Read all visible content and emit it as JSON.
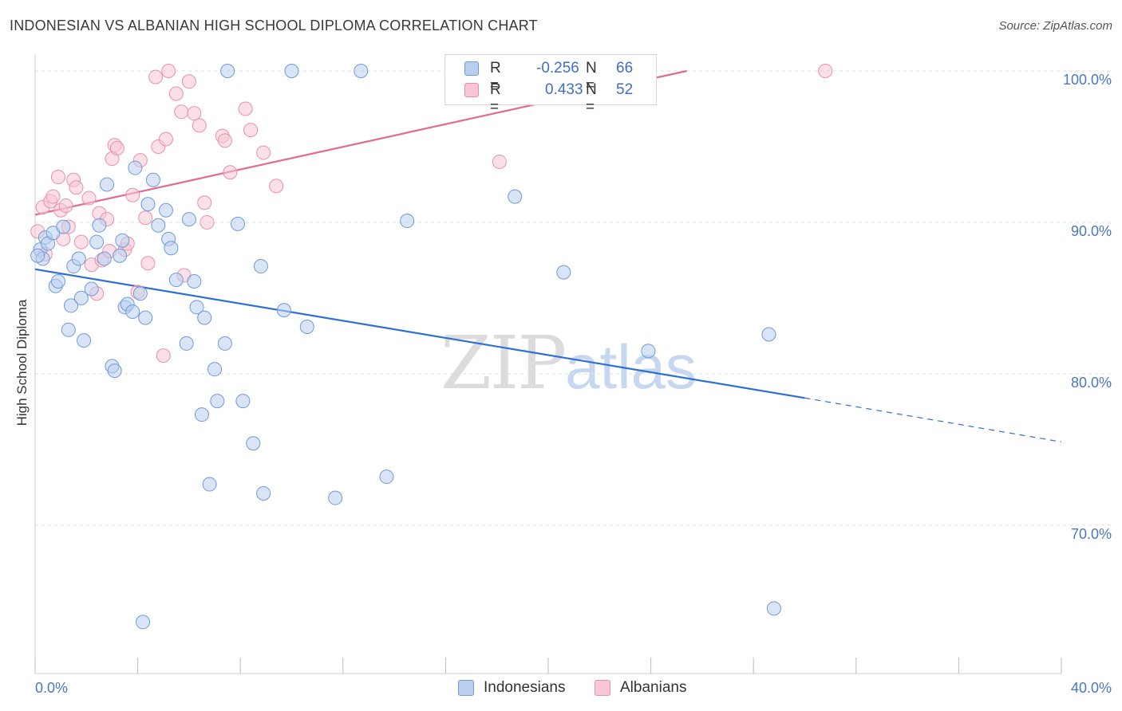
{
  "header": {
    "title": "INDONESIAN VS ALBANIAN HIGH SCHOOL DIPLOMA CORRELATION CHART",
    "source": "Source: ZipAtlas.com"
  },
  "watermark": {
    "zip": "ZIP",
    "atlas": "atlas"
  },
  "legend": {
    "r_label": "R =",
    "n_label": "N =",
    "indonesians": {
      "r": "-0.256",
      "n": "66"
    },
    "albanians": {
      "r": "0.433",
      "n": "52"
    }
  },
  "bottom_legend": {
    "indonesians": "Indonesians",
    "albanians": "Albanians"
  },
  "colors": {
    "indonesians_fill": "#b9cff0",
    "indonesians_stroke": "#6f9ad8",
    "indonesians_line": "#2e6fd0",
    "albanians_fill": "#f8c6d4",
    "albanians_stroke": "#e890ab",
    "albanians_line": "#e06b92",
    "grid": "#dddddd",
    "tick_text": "#4a78c0"
  },
  "chart_data": {
    "type": "scatter",
    "title": "INDONESIAN VS ALBANIAN HIGH SCHOOL DIPLOMA CORRELATION CHART",
    "xlabel": "",
    "ylabel": "High School Diploma",
    "xlim": [
      0,
      40
    ],
    "ylim": [
      60.2,
      101.0
    ],
    "x_tick_labels": [
      "0.0%",
      "40.0%"
    ],
    "y_ticks": [
      {
        "value": 70,
        "label": "70.0%"
      },
      {
        "value": 80,
        "label": "80.0%"
      },
      {
        "value": 90,
        "label": "90.0%"
      },
      {
        "value": 100,
        "label": "100.0%"
      }
    ],
    "series": [
      {
        "name": "Indonesians",
        "r": -0.256,
        "n": 66,
        "points": [
          [
            0.2,
            88.2
          ],
          [
            0.3,
            87.6
          ],
          [
            0.4,
            89.0
          ],
          [
            0.5,
            88.6
          ],
          [
            0.7,
            89.3
          ],
          [
            0.8,
            85.8
          ],
          [
            0.9,
            86.1
          ],
          [
            1.1,
            89.7
          ],
          [
            1.3,
            82.9
          ],
          [
            1.4,
            84.5
          ],
          [
            1.5,
            87.1
          ],
          [
            1.7,
            87.6
          ],
          [
            1.8,
            85.0
          ],
          [
            1.9,
            82.2
          ],
          [
            2.2,
            85.6
          ],
          [
            2.4,
            88.7
          ],
          [
            2.5,
            89.8
          ],
          [
            2.7,
            87.6
          ],
          [
            2.8,
            92.5
          ],
          [
            3.0,
            80.5
          ],
          [
            3.1,
            80.2
          ],
          [
            3.3,
            87.8
          ],
          [
            3.4,
            88.8
          ],
          [
            3.5,
            84.4
          ],
          [
            3.6,
            84.6
          ],
          [
            3.8,
            84.1
          ],
          [
            3.9,
            93.6
          ],
          [
            4.1,
            85.3
          ],
          [
            4.3,
            83.7
          ],
          [
            4.4,
            91.2
          ],
          [
            4.6,
            92.8
          ],
          [
            4.8,
            89.8
          ],
          [
            5.1,
            90.8
          ],
          [
            5.2,
            88.9
          ],
          [
            5.3,
            88.3
          ],
          [
            5.5,
            86.2
          ],
          [
            5.9,
            82.0
          ],
          [
            6.0,
            90.2
          ],
          [
            6.2,
            86.1
          ],
          [
            6.3,
            84.4
          ],
          [
            6.5,
            77.3
          ],
          [
            6.6,
            83.7
          ],
          [
            6.8,
            72.7
          ],
          [
            7.0,
            80.3
          ],
          [
            7.1,
            78.2
          ],
          [
            7.4,
            82.0
          ],
          [
            7.5,
            100.0
          ],
          [
            7.9,
            89.9
          ],
          [
            8.1,
            78.2
          ],
          [
            8.5,
            75.4
          ],
          [
            8.8,
            87.1
          ],
          [
            8.9,
            72.1
          ],
          [
            9.7,
            84.2
          ],
          [
            10.0,
            100.0
          ],
          [
            10.6,
            83.1
          ],
          [
            11.7,
            71.8
          ],
          [
            12.7,
            100.0
          ],
          [
            13.7,
            73.2
          ],
          [
            14.5,
            90.1
          ],
          [
            4.2,
            63.6
          ],
          [
            18.7,
            91.7
          ],
          [
            20.6,
            86.7
          ],
          [
            23.9,
            81.5
          ],
          [
            28.6,
            82.6
          ],
          [
            28.8,
            64.5
          ],
          [
            0.1,
            87.8
          ]
        ]
      },
      {
        "name": "Albanians",
        "r": 0.433,
        "n": 52,
        "points": [
          [
            0.1,
            89.4
          ],
          [
            0.3,
            91.0
          ],
          [
            0.4,
            87.9
          ],
          [
            0.6,
            91.4
          ],
          [
            0.7,
            91.7
          ],
          [
            0.9,
            93.0
          ],
          [
            1.0,
            90.8
          ],
          [
            1.1,
            88.9
          ],
          [
            1.3,
            89.7
          ],
          [
            1.5,
            92.8
          ],
          [
            1.6,
            92.3
          ],
          [
            1.8,
            88.7
          ],
          [
            2.1,
            91.6
          ],
          [
            2.2,
            87.2
          ],
          [
            2.4,
            85.3
          ],
          [
            2.5,
            90.6
          ],
          [
            2.6,
            87.5
          ],
          [
            2.8,
            90.2
          ],
          [
            3.0,
            94.2
          ],
          [
            3.1,
            95.1
          ],
          [
            3.2,
            94.9
          ],
          [
            3.5,
            88.2
          ],
          [
            3.6,
            88.6
          ],
          [
            3.8,
            91.8
          ],
          [
            4.0,
            85.4
          ],
          [
            4.1,
            94.1
          ],
          [
            4.3,
            90.3
          ],
          [
            4.4,
            87.3
          ],
          [
            4.7,
            99.6
          ],
          [
            4.8,
            95.0
          ],
          [
            5.0,
            81.2
          ],
          [
            5.1,
            95.5
          ],
          [
            5.2,
            100.0
          ],
          [
            5.5,
            98.5
          ],
          [
            5.7,
            97.3
          ],
          [
            5.8,
            86.5
          ],
          [
            6.0,
            99.3
          ],
          [
            6.2,
            97.2
          ],
          [
            6.4,
            96.4
          ],
          [
            6.6,
            91.3
          ],
          [
            6.7,
            90.0
          ],
          [
            7.3,
            95.7
          ],
          [
            7.4,
            95.4
          ],
          [
            7.6,
            93.3
          ],
          [
            8.2,
            97.5
          ],
          [
            8.4,
            96.1
          ],
          [
            8.9,
            94.6
          ],
          [
            9.4,
            92.4
          ],
          [
            18.1,
            94.0
          ],
          [
            30.8,
            100.0
          ],
          [
            1.2,
            91.1
          ],
          [
            2.9,
            88.1
          ]
        ]
      }
    ],
    "trend_lines": [
      {
        "series": "Indonesians",
        "solid": [
          [
            0.0,
            86.9
          ],
          [
            30.0,
            78.4
          ]
        ],
        "dashed": [
          [
            30.0,
            78.4
          ],
          [
            40.0,
            75.5
          ]
        ]
      },
      {
        "series": "Albanians",
        "solid": [
          [
            0.0,
            90.5
          ],
          [
            25.4,
            100.0
          ]
        ]
      }
    ]
  }
}
